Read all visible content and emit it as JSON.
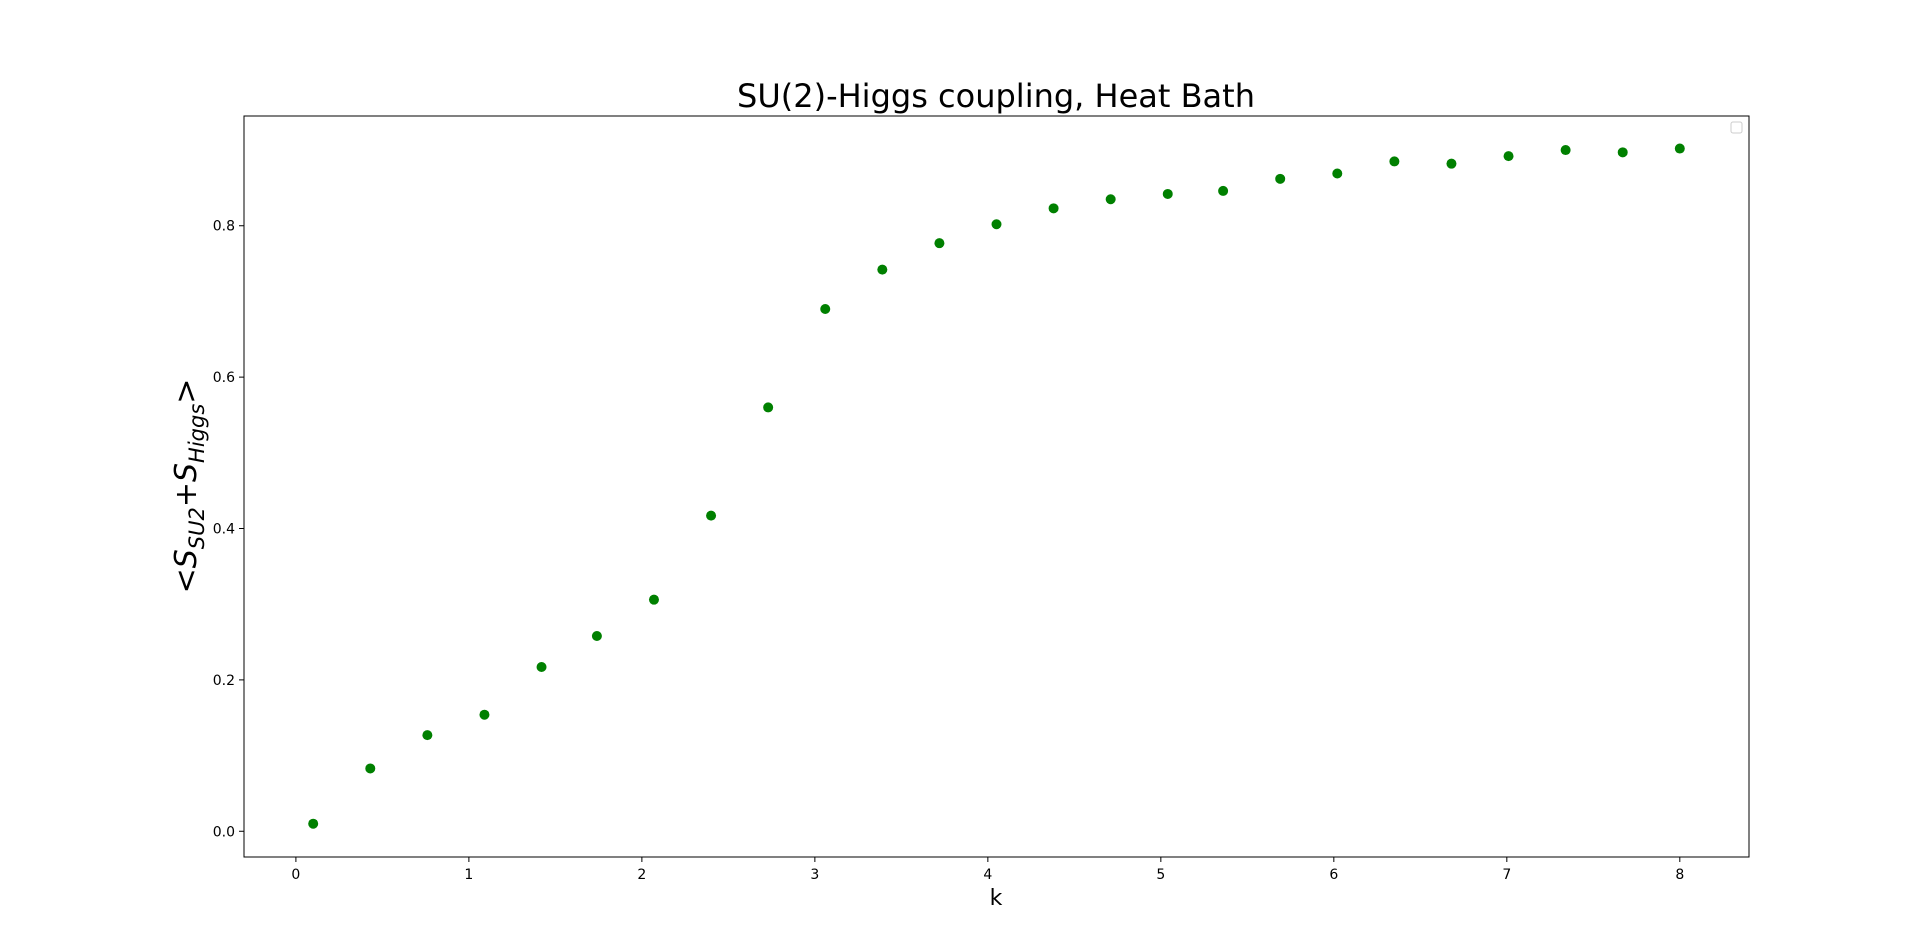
{
  "chart_data": {
    "type": "scatter",
    "title": "SU(2)-Higgs coupling, Heat Bath",
    "xlabel": "k",
    "ylabel": {
      "open": "<",
      "s1_base": "S",
      "s1_sub": "SU2",
      "plus": "+",
      "s2_base": "S",
      "s2_sub": "Higgs",
      "close": ">"
    },
    "xlim": [
      -0.3,
      8.4
    ],
    "ylim": [
      -0.034,
      0.945
    ],
    "xticks": [
      0,
      1,
      2,
      3,
      4,
      5,
      6,
      7,
      8
    ],
    "yticks": [
      0.0,
      0.2,
      0.4,
      0.6,
      0.8
    ],
    "xtick_labels": [
      "0",
      "1",
      "2",
      "3",
      "4",
      "5",
      "6",
      "7",
      "8"
    ],
    "ytick_labels": [
      "0.0",
      "0.2",
      "0.4",
      "0.6",
      "0.8"
    ],
    "marker_color": "#008000",
    "legend": "top-right (empty)",
    "grid": false,
    "series": [
      {
        "x": [
          0.1,
          0.43,
          0.76,
          1.09,
          1.42,
          1.74,
          2.07,
          2.4,
          2.73,
          3.06,
          3.39,
          3.72,
          4.05,
          4.38,
          4.71,
          5.04,
          5.36,
          5.69,
          6.02,
          6.35,
          6.68,
          7.01,
          7.34,
          7.67,
          8.0
        ],
        "y": [
          0.01,
          0.083,
          0.127,
          0.154,
          0.217,
          0.258,
          0.306,
          0.417,
          0.56,
          0.69,
          0.742,
          0.777,
          0.802,
          0.823,
          0.835,
          0.842,
          0.846,
          0.862,
          0.869,
          0.885,
          0.882,
          0.892,
          0.9,
          0.897,
          0.902
        ]
      }
    ]
  }
}
